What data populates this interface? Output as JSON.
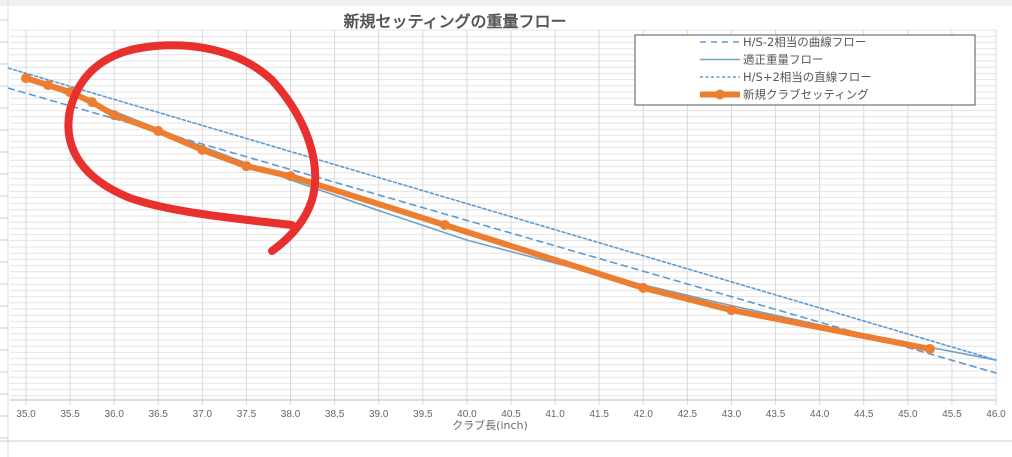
{
  "chart_data": {
    "type": "line",
    "title": "新規セッティングの重量フロー",
    "xlabel": "クラブ長(inch)",
    "ylabel": "",
    "xlim": [
      34.8,
      46.0
    ],
    "ylim": [
      0,
      100
    ],
    "x_ticks": [
      "35.0",
      "35.5",
      "36.0",
      "36.5",
      "37.0",
      "37.5",
      "38.0",
      "38.5",
      "39.0",
      "39.5",
      "40.0",
      "40.5",
      "41.0",
      "41.5",
      "42.0",
      "42.5",
      "43.0",
      "43.5",
      "44.0",
      "44.5",
      "45.0",
      "45.5",
      "46.0"
    ],
    "y_tick_labels_shown": false,
    "grid": true,
    "legend_position": "top-right",
    "series": [
      {
        "name": "H/S-2相当の曲線フロー",
        "style": "dashed",
        "color": "#5b9bd5",
        "x": [
          34.8,
          46.0
        ],
        "y": [
          84.3,
          7.3
        ]
      },
      {
        "name": "適正重量フロー",
        "style": "solid",
        "color": "#6fa3c8",
        "x": [
          35.0,
          36.0,
          37.0,
          38.0,
          39.0,
          40.0,
          41.0,
          42.0,
          43.0,
          44.0,
          45.0,
          46.0
        ],
        "y": [
          86.8,
          78.0,
          68.5,
          59.5,
          51.2,
          43.2,
          37.0,
          31.1,
          25.5,
          20.3,
          15.4,
          10.8
        ]
      },
      {
        "name": "H/S+2相当の直線フロー",
        "style": "dotted",
        "color": "#5b9bd5",
        "x": [
          34.8,
          46.0
        ],
        "y": [
          89.7,
          10.8
        ]
      },
      {
        "name": "新規クラブセッティング",
        "style": "solid-marker",
        "color": "#ed7d31",
        "x": [
          35.0,
          35.25,
          35.5,
          35.75,
          36.0,
          36.5,
          37.0,
          37.5,
          38.0,
          39.75,
          42.0,
          43.0,
          45.25
        ],
        "y": [
          87.0,
          85.1,
          83.2,
          80.5,
          77.0,
          72.7,
          67.6,
          63.2,
          60.5,
          47.3,
          30.3,
          24.3,
          13.8
        ]
      }
    ],
    "annotation": {
      "type": "hand-drawn-circle",
      "color": "#e8302f"
    }
  }
}
